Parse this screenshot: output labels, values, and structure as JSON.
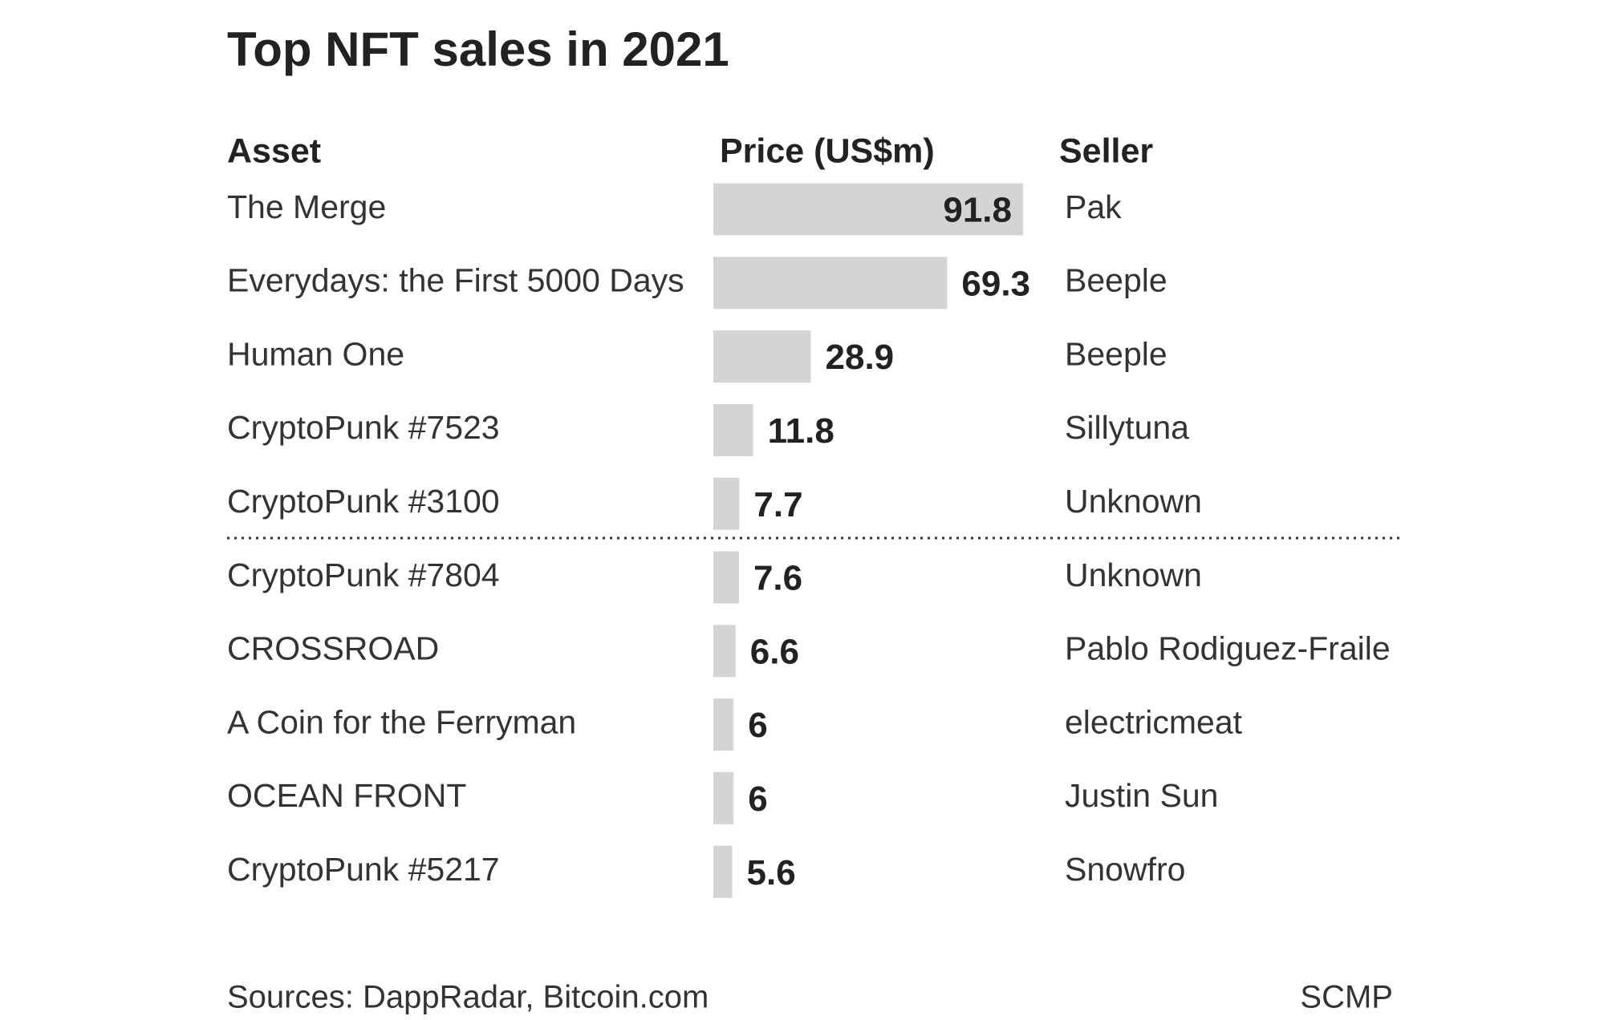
{
  "chart_data": {
    "type": "bar",
    "title": "Top NFT sales in 2021",
    "column_headers": [
      "Asset",
      "Price (US$m)",
      "Seller"
    ],
    "categories": [
      "The Merge",
      "Everydays: the First 5000 Days",
      "Human One",
      "CryptoPunk #7523",
      "CryptoPunk #3100",
      "CryptoPunk #7804",
      "CROSSROAD",
      "A Coin for the Ferryman",
      "OCEAN FRONT",
      "CryptoPunk #5217"
    ],
    "values": [
      91.8,
      69.3,
      28.9,
      11.8,
      7.7,
      7.6,
      6.6,
      6,
      6,
      5.6
    ],
    "sellers": [
      "Pak",
      "Beeple",
      "Beeple",
      "Sillytuna",
      "Unknown",
      "Unknown",
      "Pablo Rodiguez-Fraile",
      "electricmeat",
      "Justin Sun",
      "Snowfro"
    ],
    "color": "#d3d4d5",
    "source": "Sources: DappRadar, Bitcoin.com",
    "credit": "SCMP"
  }
}
